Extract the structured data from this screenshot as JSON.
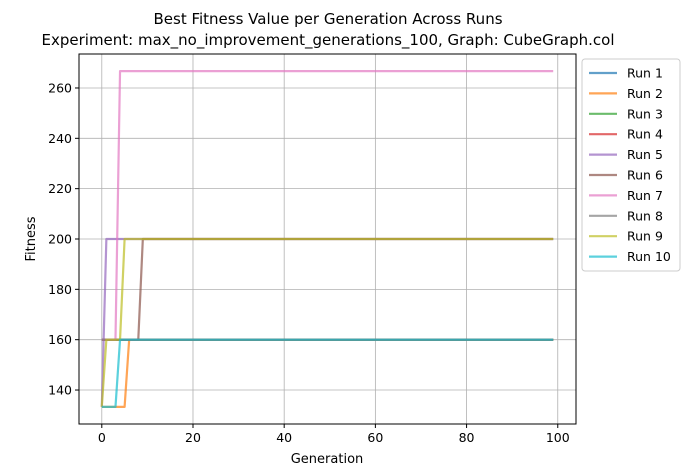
{
  "chart_data": {
    "type": "line",
    "title": "Best Fitness Value per Generation Across Runs",
    "subtitle": "Experiment: max_no_improvement_generations_100, Graph: CubeGraph.col",
    "xlabel": "Generation",
    "ylabel": "Fitness",
    "xlim": [
      -5,
      104
    ],
    "ylim": [
      126.5,
      273.5
    ],
    "xticks": [
      0,
      20,
      40,
      60,
      80,
      100
    ],
    "yticks": [
      140,
      160,
      180,
      200,
      220,
      240,
      260
    ],
    "grid": true,
    "legend_position": "outside-right",
    "series": [
      {
        "name": "Run 1",
        "color": "#1f77b4",
        "points": [
          [
            0,
            160
          ],
          [
            99,
            160
          ]
        ]
      },
      {
        "name": "Run 2",
        "color": "#ff7f0e",
        "points": [
          [
            0,
            133.3
          ],
          [
            5,
            133.3
          ],
          [
            6,
            160
          ],
          [
            99,
            160
          ]
        ]
      },
      {
        "name": "Run 3",
        "color": "#2ca02c",
        "points": [
          [
            0,
            160
          ],
          [
            99,
            160
          ]
        ]
      },
      {
        "name": "Run 4",
        "color": "#d62728",
        "points": [
          [
            0,
            160
          ],
          [
            99,
            160
          ]
        ]
      },
      {
        "name": "Run 5",
        "color": "#9467bd",
        "points": [
          [
            0,
            133.3
          ],
          [
            1,
            200
          ],
          [
            99,
            200
          ]
        ]
      },
      {
        "name": "Run 6",
        "color": "#8c564b",
        "points": [
          [
            0,
            160
          ],
          [
            8,
            160
          ],
          [
            9,
            200
          ],
          [
            99,
            200
          ]
        ]
      },
      {
        "name": "Run 7",
        "color": "#e377c2",
        "points": [
          [
            0,
            160
          ],
          [
            3,
            160
          ],
          [
            4,
            266.7
          ],
          [
            99,
            266.7
          ]
        ]
      },
      {
        "name": "Run 8",
        "color": "#7f7f7f",
        "points": [
          [
            0,
            160
          ],
          [
            99,
            160
          ]
        ]
      },
      {
        "name": "Run 9",
        "color": "#bcbd22",
        "points": [
          [
            0,
            133.3
          ],
          [
            1,
            160
          ],
          [
            4,
            160
          ],
          [
            5,
            200
          ],
          [
            99,
            200
          ]
        ]
      },
      {
        "name": "Run 10",
        "color": "#17becf",
        "points": [
          [
            0,
            133.3
          ],
          [
            3,
            133.3
          ],
          [
            4,
            160
          ],
          [
            99,
            160
          ]
        ]
      }
    ]
  }
}
